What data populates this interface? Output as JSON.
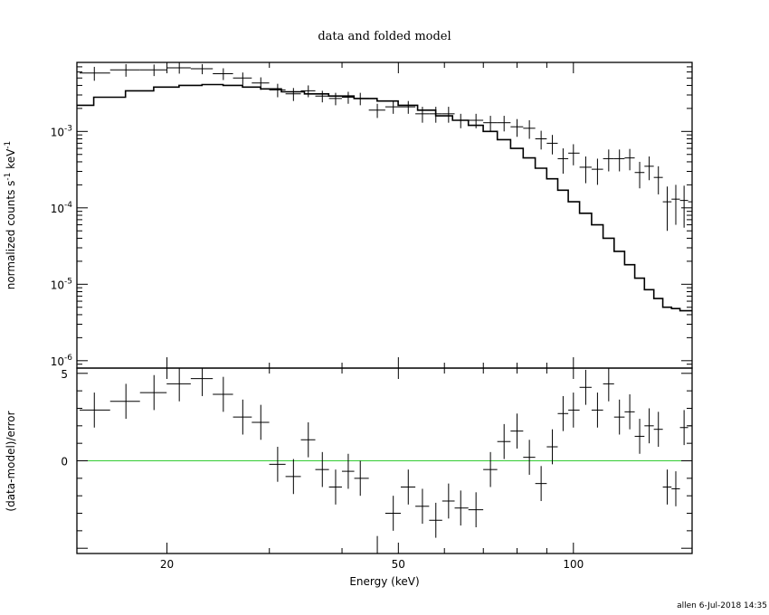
{
  "chart_data": {
    "type": "scatter",
    "title": "data and folded model",
    "xlabel": "Energy (keV)",
    "xscale": "log",
    "xlim": [
      14,
      160
    ],
    "x_ticks": [
      {
        "value": 20,
        "label": "20"
      },
      {
        "value": 50,
        "label": "50"
      },
      {
        "value": 100,
        "label": "100"
      }
    ],
    "footer": "allen   6-Jul-2018 14:35",
    "panels": [
      {
        "name": "spectrum",
        "ylabel_parts": [
          "normalized counts s",
          "-1",
          " keV",
          "-1"
        ],
        "yscale": "log",
        "ylim": [
          8e-07,
          0.008
        ],
        "y_ticks": [
          {
            "value": 1e-06,
            "base": "10",
            "exp": "-6"
          },
          {
            "value": 1e-05,
            "base": "10",
            "exp": "-5"
          },
          {
            "value": 0.0001,
            "base": "10",
            "exp": "-4"
          },
          {
            "value": 0.001,
            "base": "10",
            "exp": "-3"
          }
        ],
        "data": {
          "x": [
            15,
            17,
            19,
            21,
            23,
            25,
            27,
            29,
            31,
            33,
            35,
            37,
            39,
            41,
            43,
            46,
            49,
            52,
            55,
            58,
            61,
            64,
            68,
            72,
            76,
            80,
            84,
            88,
            92,
            96,
            100,
            105,
            110,
            115,
            120,
            125,
            130,
            135,
            140,
            145,
            150,
            155,
            160
          ],
          "y": [
            0.0058,
            0.0064,
            0.0064,
            0.0068,
            0.0066,
            0.0057,
            0.005,
            0.0043,
            0.0035,
            0.0031,
            0.0034,
            0.0029,
            0.0027,
            0.0028,
            0.0027,
            0.0019,
            0.0021,
            0.0021,
            0.0017,
            0.0017,
            0.0017,
            0.0014,
            0.0014,
            0.0013,
            0.0013,
            0.00115,
            0.0011,
            0.0008,
            0.0007,
            0.00044,
            0.00052,
            0.00034,
            0.00032,
            0.00044,
            0.00044,
            0.00045,
            0.00029,
            0.00035,
            0.00025,
            0.00012,
            0.00013,
            0.000125,
            0.00012
          ],
          "yerr": [
            0.0012,
            0.0012,
            0.0011,
            0.0011,
            0.001,
            0.001,
            0.0009,
            0.0008,
            0.0007,
            0.0006,
            0.0006,
            0.0005,
            0.0005,
            0.0005,
            0.0005,
            0.0004,
            0.0004,
            0.0004,
            0.0004,
            0.0004,
            0.0004,
            0.0003,
            0.0003,
            0.0003,
            0.0003,
            0.0003,
            0.0003,
            0.00022,
            0.0002,
            0.00016,
            0.00016,
            0.00013,
            0.00012,
            0.00014,
            0.00014,
            0.00014,
            0.00011,
            0.00012,
            0.0001,
            7e-05,
            7e-05,
            7e-05,
            7e-05
          ]
        },
        "model": {
          "x": [
            14,
            16,
            18,
            20,
            22,
            24,
            26,
            28,
            30,
            33,
            36,
            40,
            44,
            48,
            52,
            56,
            60,
            64,
            68,
            72,
            76,
            80,
            84,
            88,
            92,
            96,
            100,
            105,
            110,
            115,
            120,
            125,
            130,
            135,
            140,
            145,
            150,
            155,
            160
          ],
          "y": [
            0.0022,
            0.0028,
            0.0034,
            0.0038,
            0.004,
            0.0041,
            0.004,
            0.0038,
            0.0036,
            0.0033,
            0.0031,
            0.0029,
            0.0027,
            0.0025,
            0.0022,
            0.0019,
            0.0016,
            0.0014,
            0.0012,
            0.001,
            0.00078,
            0.0006,
            0.00045,
            0.00033,
            0.00024,
            0.00017,
            0.00012,
            8.5e-05,
            6e-05,
            4e-05,
            2.7e-05,
            1.8e-05,
            1.2e-05,
            8.5e-06,
            6.5e-06,
            5e-06,
            4.8e-06,
            4.5e-06,
            4.5e-06
          ]
        }
      },
      {
        "name": "residuals",
        "ylabel": "(data-model)/error",
        "ylim": [
          -5.3,
          5.3
        ],
        "y_ticks": [
          {
            "value": 0,
            "label": "0"
          },
          {
            "value": 5,
            "label": "5"
          }
        ],
        "zero_line_color": "#33cc33",
        "data": {
          "x": [
            15,
            17,
            19,
            21,
            23,
            25,
            27,
            29,
            31,
            33,
            35,
            37,
            39,
            41,
            43,
            46,
            49,
            52,
            55,
            58,
            61,
            64,
            68,
            72,
            76,
            80,
            84,
            88,
            92,
            96,
            100,
            105,
            110,
            115,
            120,
            125,
            130,
            135,
            140,
            145,
            150,
            155,
            160
          ],
          "y": [
            2.9,
            3.4,
            3.9,
            4.4,
            4.7,
            3.8,
            2.5,
            2.2,
            -0.2,
            -0.9,
            1.2,
            -0.5,
            -1.5,
            -0.6,
            -1.0,
            -5.3,
            -3.0,
            -1.5,
            -2.6,
            -3.4,
            -2.3,
            -2.7,
            -2.8,
            -0.5,
            1.1,
            1.7,
            0.2,
            -1.3,
            0.8,
            2.7,
            2.9,
            4.2,
            2.9,
            4.4,
            2.5,
            2.8,
            1.4,
            2.0,
            1.8,
            -1.5,
            -1.6,
            1.9,
            2.0
          ],
          "yerr": [
            1.0,
            1.0,
            1.0,
            1.0,
            1.0,
            1.0,
            1.0,
            1.0,
            1.0,
            1.0,
            1.0,
            1.0,
            1.0,
            1.0,
            1.0,
            1.0,
            1.0,
            1.0,
            1.0,
            1.0,
            1.0,
            1.0,
            1.0,
            1.0,
            1.0,
            1.0,
            1.0,
            1.0,
            1.0,
            1.0,
            1.0,
            1.0,
            1.0,
            1.0,
            1.0,
            1.0,
            1.0,
            1.0,
            1.0,
            1.0,
            1.0,
            1.0,
            1.0
          ]
        }
      }
    ]
  }
}
